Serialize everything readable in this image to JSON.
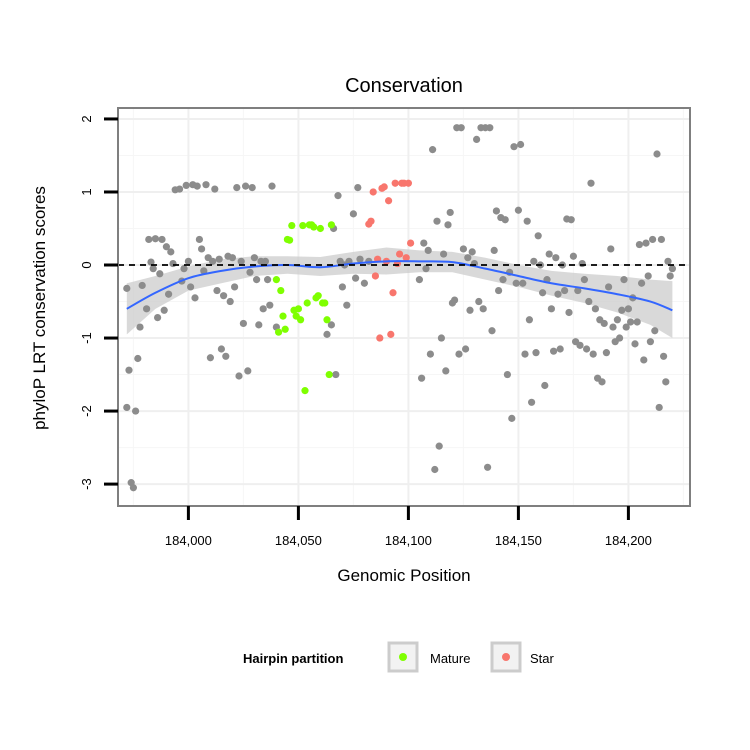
{
  "chart_data": {
    "type": "scatter",
    "title": "Conservation",
    "xlabel": "Genomic Position",
    "ylabel": "phyloP LRT conservation scores",
    "xlim": [
      183968,
      184228
    ],
    "ylim": [
      -3.3,
      2.15
    ],
    "x_ticks": [
      184000,
      184050,
      184100,
      184150,
      184200
    ],
    "x_tick_labels": [
      "184,000",
      "184,050",
      "184,100",
      "184,150",
      "184,200"
    ],
    "y_ticks": [
      -3,
      -2,
      -1,
      0,
      1,
      2
    ],
    "y_tick_labels": [
      "-3",
      "-2",
      "-1",
      "0",
      "1",
      "2"
    ],
    "reference_line": {
      "y": 0,
      "style": "dashed"
    },
    "legend": {
      "title": "Hairpin partition",
      "position": "bottom",
      "entries": [
        {
          "label": "Mature",
          "color": "#7fff00"
        },
        {
          "label": "Star",
          "color": "#f8766d"
        }
      ]
    },
    "colors": {
      "other": "#8c8c8c",
      "mature": "#7fff00",
      "star": "#f8766d",
      "smooth": "#3366ff",
      "band": "#cccccc"
    },
    "series": [
      {
        "name": "Other",
        "points": [
          [
            183972,
            -0.32
          ],
          [
            183973,
            -1.44
          ],
          [
            183972,
            -1.95
          ],
          [
            183974,
            -2.98
          ],
          [
            183975,
            -3.05
          ],
          [
            183976,
            -2.0
          ],
          [
            183977,
            -1.28
          ],
          [
            183978,
            -0.85
          ],
          [
            183979,
            -0.28
          ],
          [
            183981,
            -0.6
          ],
          [
            183982,
            0.35
          ],
          [
            183983,
            0.04
          ],
          [
            183984,
            -0.05
          ],
          [
            183985,
            0.36
          ],
          [
            183986,
            -0.72
          ],
          [
            183987,
            -0.12
          ],
          [
            183988,
            0.35
          ],
          [
            183989,
            -0.62
          ],
          [
            183990,
            0.25
          ],
          [
            183991,
            -0.4
          ],
          [
            183992,
            0.18
          ],
          [
            183993,
            0.02
          ],
          [
            183994,
            1.03
          ],
          [
            183996,
            1.04
          ],
          [
            183997,
            -0.22
          ],
          [
            183998,
            -0.05
          ],
          [
            183999,
            1.09
          ],
          [
            184000,
            0.05
          ],
          [
            184001,
            -0.3
          ],
          [
            184002,
            1.1
          ],
          [
            184003,
            -0.45
          ],
          [
            184004,
            1.08
          ],
          [
            184005,
            0.35
          ],
          [
            184006,
            0.22
          ],
          [
            184007,
            -0.08
          ],
          [
            184008,
            1.1
          ],
          [
            184009,
            0.1
          ],
          [
            184010,
            -1.27
          ],
          [
            184011,
            0.05
          ],
          [
            184012,
            1.04
          ],
          [
            184013,
            -0.35
          ],
          [
            184014,
            0.08
          ],
          [
            184015,
            -1.15
          ],
          [
            184016,
            -0.42
          ],
          [
            184017,
            -1.25
          ],
          [
            184018,
            0.12
          ],
          [
            184019,
            -0.5
          ],
          [
            184020,
            0.1
          ],
          [
            184021,
            -0.3
          ],
          [
            184022,
            1.06
          ],
          [
            184023,
            -1.52
          ],
          [
            184024,
            0.05
          ],
          [
            184025,
            -0.8
          ],
          [
            184026,
            1.08
          ],
          [
            184027,
            -1.45
          ],
          [
            184028,
            -0.1
          ],
          [
            184029,
            1.06
          ],
          [
            184030,
            0.1
          ],
          [
            184031,
            -0.2
          ],
          [
            184032,
            -0.82
          ],
          [
            184033,
            0.05
          ],
          [
            184034,
            -0.6
          ],
          [
            184035,
            0.05
          ],
          [
            184036,
            -0.2
          ],
          [
            184037,
            -0.55
          ],
          [
            184038,
            1.08
          ],
          [
            184040,
            -0.85
          ],
          [
            184063,
            -0.95
          ],
          [
            184065,
            -0.82
          ],
          [
            184066,
            0.5
          ],
          [
            184067,
            -1.5
          ],
          [
            184068,
            0.95
          ],
          [
            184069,
            0.05
          ],
          [
            184070,
            -0.3
          ],
          [
            184071,
            0.0
          ],
          [
            184072,
            -0.55
          ],
          [
            184073,
            0.05
          ],
          [
            184075,
            0.7
          ],
          [
            184076,
            -0.18
          ],
          [
            184077,
            1.06
          ],
          [
            184078,
            0.08
          ],
          [
            184080,
            -0.25
          ],
          [
            184082,
            0.05
          ],
          [
            184105,
            -0.2
          ],
          [
            184106,
            -1.55
          ],
          [
            184107,
            0.3
          ],
          [
            184108,
            -0.05
          ],
          [
            184109,
            0.2
          ],
          [
            184110,
            -1.22
          ],
          [
            184111,
            1.58
          ],
          [
            184112,
            -2.8
          ],
          [
            184113,
            0.6
          ],
          [
            184114,
            -2.48
          ],
          [
            184115,
            -1.0
          ],
          [
            184116,
            0.15
          ],
          [
            184117,
            -1.45
          ],
          [
            184118,
            0.55
          ],
          [
            184119,
            0.72
          ],
          [
            184120,
            -0.52
          ],
          [
            184121,
            -0.48
          ],
          [
            184122,
            1.88
          ],
          [
            184123,
            -1.22
          ],
          [
            184124,
            1.88
          ],
          [
            184125,
            0.22
          ],
          [
            184126,
            -1.15
          ],
          [
            184127,
            0.1
          ],
          [
            184128,
            -0.62
          ],
          [
            184129,
            0.18
          ],
          [
            184130,
            0.02
          ],
          [
            184131,
            1.72
          ],
          [
            184132,
            -0.5
          ],
          [
            184133,
            1.88
          ],
          [
            184134,
            -0.6
          ],
          [
            184135,
            1.88
          ],
          [
            184136,
            -2.77
          ],
          [
            184137,
            1.88
          ],
          [
            184138,
            -0.9
          ],
          [
            184139,
            0.2
          ],
          [
            184140,
            0.74
          ],
          [
            184141,
            -0.35
          ],
          [
            184142,
            0.65
          ],
          [
            184143,
            -0.2
          ],
          [
            184144,
            0.62
          ],
          [
            184145,
            -1.5
          ],
          [
            184146,
            -0.1
          ],
          [
            184147,
            -2.1
          ],
          [
            184148,
            1.62
          ],
          [
            184149,
            -0.25
          ],
          [
            184150,
            0.75
          ],
          [
            184151,
            1.65
          ],
          [
            184152,
            -0.25
          ],
          [
            184153,
            -1.22
          ],
          [
            184154,
            0.6
          ],
          [
            184155,
            -0.75
          ],
          [
            184156,
            -1.88
          ],
          [
            184157,
            0.05
          ],
          [
            184158,
            -1.2
          ],
          [
            184159,
            0.4
          ],
          [
            184160,
            0.0
          ],
          [
            184161,
            -0.38
          ],
          [
            184162,
            -1.65
          ],
          [
            184163,
            -0.2
          ],
          [
            184164,
            0.15
          ],
          [
            184165,
            -0.6
          ],
          [
            184166,
            -1.18
          ],
          [
            184167,
            0.1
          ],
          [
            184168,
            -0.4
          ],
          [
            184169,
            -1.15
          ],
          [
            184170,
            0.0
          ],
          [
            184171,
            -0.35
          ],
          [
            184172,
            0.63
          ],
          [
            184173,
            -0.65
          ],
          [
            184174,
            0.62
          ],
          [
            184175,
            0.12
          ],
          [
            184176,
            -1.05
          ],
          [
            184177,
            -0.35
          ],
          [
            184178,
            -1.1
          ],
          [
            184179,
            0.02
          ],
          [
            184180,
            -0.2
          ],
          [
            184181,
            -1.15
          ],
          [
            184182,
            -0.5
          ],
          [
            184183,
            1.12
          ],
          [
            184184,
            -1.22
          ],
          [
            184185,
            -0.6
          ],
          [
            184186,
            -1.55
          ],
          [
            184187,
            -0.75
          ],
          [
            184188,
            -1.6
          ],
          [
            184189,
            -0.8
          ],
          [
            184190,
            -1.2
          ],
          [
            184191,
            -0.3
          ],
          [
            184192,
            0.22
          ],
          [
            184193,
            -0.85
          ],
          [
            184194,
            -1.05
          ],
          [
            184195,
            -0.75
          ],
          [
            184196,
            -1.0
          ],
          [
            184197,
            -0.62
          ],
          [
            184198,
            -0.2
          ],
          [
            184199,
            -0.85
          ],
          [
            184200,
            -0.6
          ],
          [
            184201,
            -0.78
          ],
          [
            184202,
            -0.45
          ],
          [
            184203,
            -1.08
          ],
          [
            184204,
            -0.78
          ],
          [
            184205,
            0.28
          ],
          [
            184206,
            -0.25
          ],
          [
            184207,
            -1.3
          ],
          [
            184208,
            0.3
          ],
          [
            184209,
            -0.15
          ],
          [
            184210,
            -1.05
          ],
          [
            184211,
            0.35
          ],
          [
            184212,
            -0.9
          ],
          [
            184213,
            1.52
          ],
          [
            184214,
            -1.95
          ],
          [
            184215,
            0.35
          ],
          [
            184216,
            -1.25
          ],
          [
            184217,
            -1.6
          ],
          [
            184218,
            0.05
          ],
          [
            184219,
            -0.15
          ],
          [
            184220,
            -0.05
          ]
        ]
      },
      {
        "name": "Mature",
        "points": [
          [
            184040,
            -0.2
          ],
          [
            184041,
            -0.92
          ],
          [
            184042,
            -0.35
          ],
          [
            184043,
            -0.7
          ],
          [
            184044,
            -0.88
          ],
          [
            184045,
            0.35
          ],
          [
            184046,
            0.34
          ],
          [
            184047,
            0.54
          ],
          [
            184048,
            -0.62
          ],
          [
            184049,
            -0.7
          ],
          [
            184050,
            -0.6
          ],
          [
            184051,
            -0.75
          ],
          [
            184052,
            0.54
          ],
          [
            184053,
            -1.72
          ],
          [
            184054,
            -0.52
          ],
          [
            184055,
            0.55
          ],
          [
            184056,
            0.55
          ],
          [
            184057,
            0.52
          ],
          [
            184058,
            -0.45
          ],
          [
            184059,
            -0.42
          ],
          [
            184060,
            0.5
          ],
          [
            184061,
            -0.52
          ],
          [
            184062,
            -0.52
          ],
          [
            184063,
            -0.75
          ],
          [
            184064,
            -1.5
          ],
          [
            184065,
            0.55
          ]
        ]
      },
      {
        "name": "Star",
        "points": [
          [
            184082,
            0.56
          ],
          [
            184083,
            0.6
          ],
          [
            184084,
            1.0
          ],
          [
            184085,
            -0.15
          ],
          [
            184086,
            0.08
          ],
          [
            184087,
            -1.0
          ],
          [
            184088,
            1.05
          ],
          [
            184089,
            1.07
          ],
          [
            184090,
            0.05
          ],
          [
            184091,
            0.88
          ],
          [
            184092,
            -0.95
          ],
          [
            184093,
            -0.38
          ],
          [
            184094,
            1.12
          ],
          [
            184095,
            0.02
          ],
          [
            184096,
            0.15
          ],
          [
            184097,
            1.12
          ],
          [
            184098,
            1.12
          ],
          [
            184099,
            0.1
          ],
          [
            184100,
            1.12
          ],
          [
            184101,
            0.3
          ]
        ]
      }
    ],
    "smooth": {
      "x": [
        183972,
        183985,
        184000,
        184015,
        184030,
        184045,
        184060,
        184075,
        184090,
        184105,
        184120,
        184135,
        184150,
        184165,
        184180,
        184195,
        184210,
        184220
      ],
      "y": [
        -0.6,
        -0.38,
        -0.18,
        -0.08,
        -0.02,
        0.0,
        -0.03,
        0.02,
        0.05,
        0.05,
        0.04,
        -0.05,
        -0.15,
        -0.25,
        -0.32,
        -0.4,
        -0.5,
        -0.62
      ],
      "upper": [
        -0.25,
        -0.15,
        -0.02,
        0.08,
        0.12,
        0.12,
        0.11,
        0.18,
        0.24,
        0.2,
        0.18,
        0.1,
        0.0,
        -0.08,
        -0.12,
        -0.15,
        -0.2,
        -0.22
      ],
      "lower": [
        -0.95,
        -0.6,
        -0.35,
        -0.25,
        -0.15,
        -0.12,
        -0.15,
        -0.12,
        -0.13,
        -0.1,
        -0.1,
        -0.2,
        -0.3,
        -0.42,
        -0.52,
        -0.65,
        -0.82,
        -1.0
      ]
    }
  }
}
